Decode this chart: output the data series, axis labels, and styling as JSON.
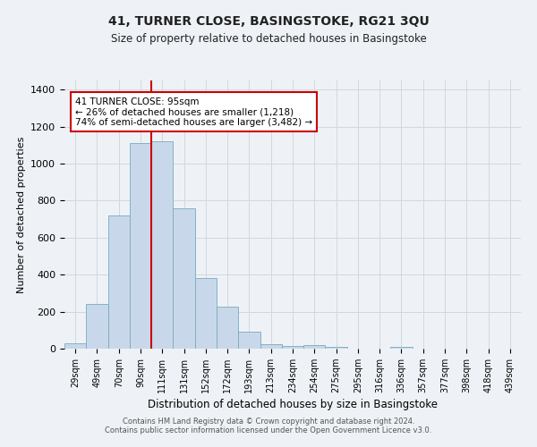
{
  "title": "41, TURNER CLOSE, BASINGSTOKE, RG21 3QU",
  "subtitle": "Size of property relative to detached houses in Basingstoke",
  "xlabel": "Distribution of detached houses by size in Basingstoke",
  "ylabel": "Number of detached properties",
  "bar_color": "#c8d8ea",
  "bar_edge_color": "#7aaabf",
  "grid_color": "#d0d8e0",
  "bg_color": "#eef2f6",
  "tick_labels": [
    "29sqm",
    "49sqm",
    "70sqm",
    "90sqm",
    "111sqm",
    "131sqm",
    "152sqm",
    "172sqm",
    "193sqm",
    "213sqm",
    "234sqm",
    "254sqm",
    "275sqm",
    "295sqm",
    "316sqm",
    "336sqm",
    "357sqm",
    "377sqm",
    "398sqm",
    "418sqm",
    "439sqm"
  ],
  "bar_heights": [
    30,
    240,
    720,
    1110,
    1120,
    760,
    380,
    225,
    90,
    25,
    15,
    20,
    10,
    0,
    0,
    10,
    0,
    0,
    0,
    0,
    0
  ],
  "ylim": [
    0,
    1450
  ],
  "yticks": [
    0,
    200,
    400,
    600,
    800,
    1000,
    1200,
    1400
  ],
  "vline_x_index": 4,
  "vline_color": "#cc0000",
  "annotation_title": "41 TURNER CLOSE: 95sqm",
  "annotation_line1": "← 26% of detached houses are smaller (1,218)",
  "annotation_line2": "74% of semi-detached houses are larger (3,482) →",
  "annotation_box_color": "#ffffff",
  "annotation_box_edge": "#cc0000",
  "footer1": "Contains HM Land Registry data © Crown copyright and database right 2024.",
  "footer2": "Contains public sector information licensed under the Open Government Licence v3.0."
}
